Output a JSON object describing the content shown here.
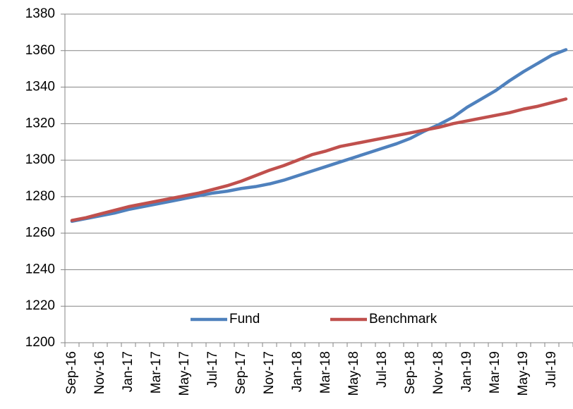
{
  "chart_data": {
    "type": "line",
    "categories": [
      "Sep-16",
      null,
      "Nov-16",
      null,
      "Jan-17",
      null,
      "Mar-17",
      null,
      "May-17",
      null,
      "Jul-17",
      null,
      "Sep-17",
      null,
      "Nov-17",
      null,
      "Jan-18",
      null,
      "Mar-18",
      null,
      "May-18",
      null,
      "Jul-18",
      null,
      "Sep-18",
      null,
      "Nov-18",
      null,
      "Jan-19",
      null,
      "Mar-19",
      null,
      "May-19",
      null,
      "Jul-19",
      null
    ],
    "series": [
      {
        "name": "Fund",
        "color": "#4f81bd",
        "values": [
          1266.5,
          1268,
          1269.5,
          1271,
          1273,
          1274.5,
          1276,
          1277.5,
          1279,
          1280.5,
          1282,
          1283,
          1284.5,
          1285.5,
          1287,
          1289,
          1291.5,
          1294,
          1296.5,
          1299,
          1301.5,
          1304,
          1306.5,
          1309,
          1312,
          1316,
          1319.5,
          1323.5,
          1329,
          1333.5,
          1338,
          1343.5,
          1348.5,
          1353,
          1357.5,
          1360.5
        ]
      },
      {
        "name": "Benchmark",
        "color": "#c0504d",
        "values": [
          1267,
          1268.5,
          1270.5,
          1272.5,
          1274.5,
          1276,
          1277.5,
          1279,
          1280.5,
          1282,
          1284,
          1286,
          1288.5,
          1291.5,
          1294.5,
          1297,
          1300,
          1303,
          1305,
          1307.5,
          1309,
          1310.5,
          1312,
          1313.5,
          1315,
          1316.5,
          1318,
          1320,
          1321.5,
          1323,
          1324.5,
          1326,
          1328,
          1329.5,
          1331.5,
          1333.5
        ]
      }
    ],
    "ylim": [
      1200,
      1380
    ],
    "yticks": [
      1200,
      1220,
      1240,
      1260,
      1280,
      1300,
      1320,
      1340,
      1360,
      1380
    ],
    "grid": true,
    "legend": "bottom"
  }
}
